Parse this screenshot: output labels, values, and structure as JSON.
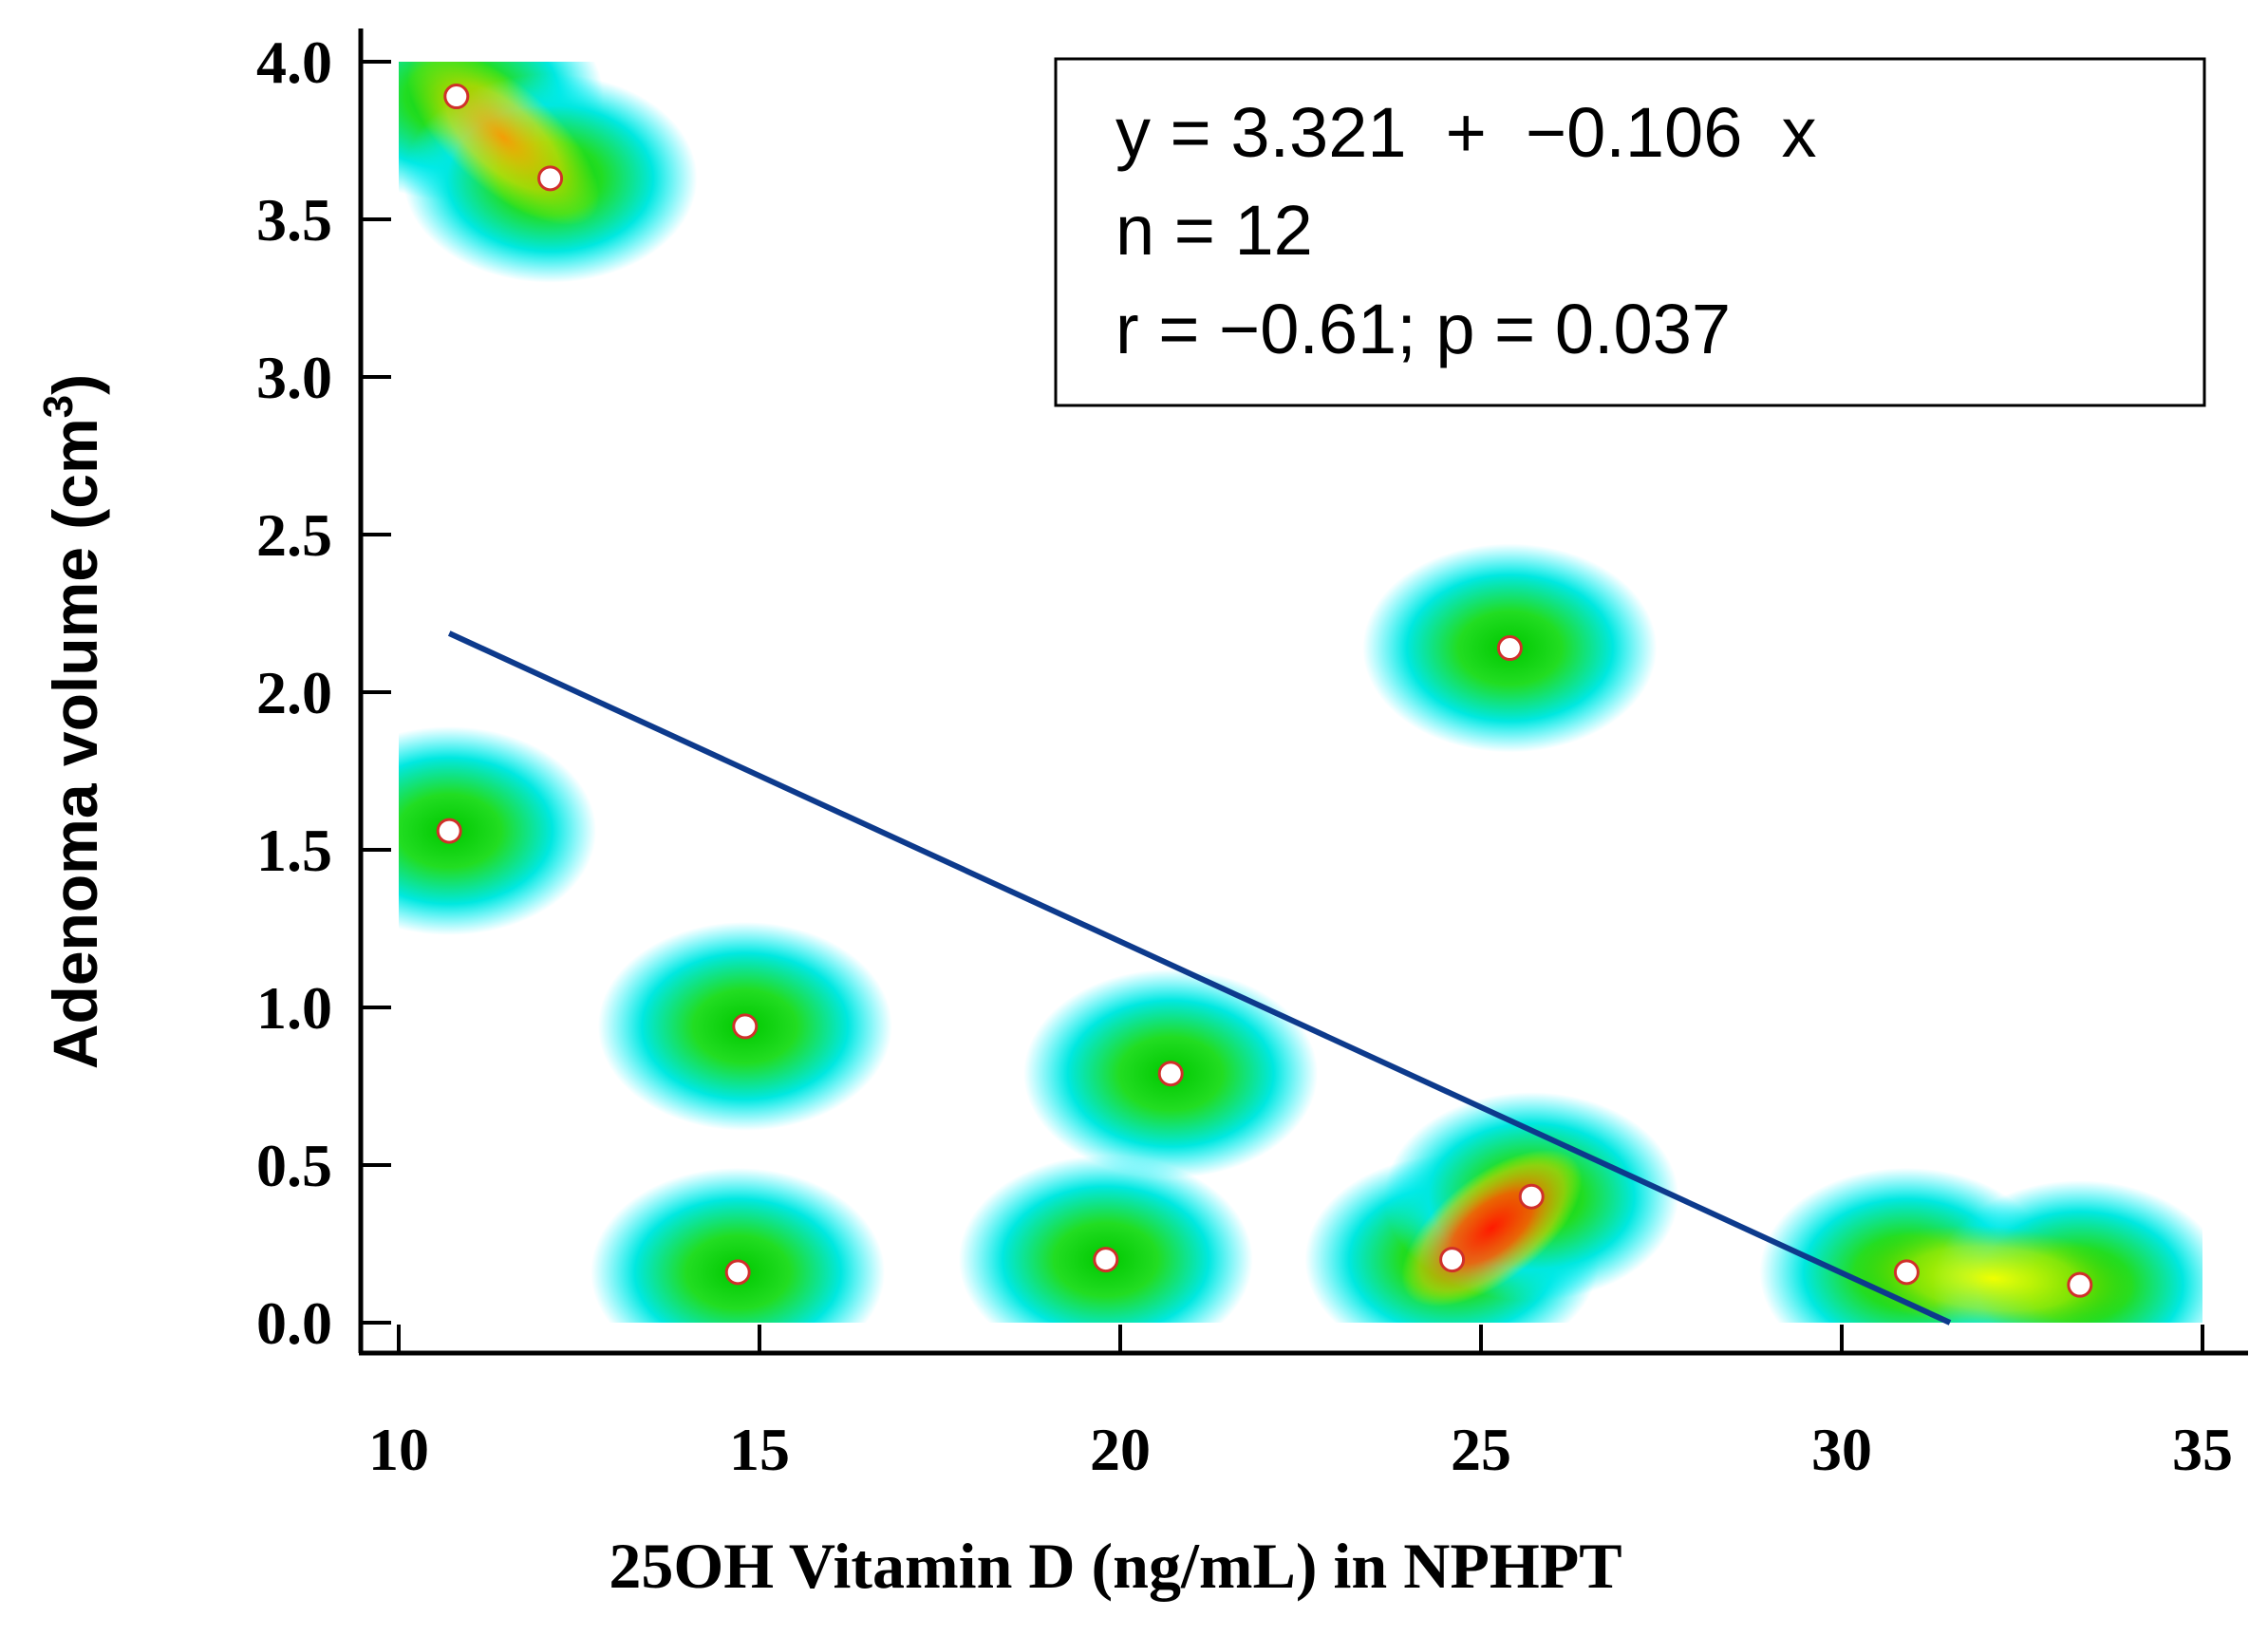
{
  "chart_data": {
    "type": "scatter",
    "style": "density-heatmap scatter with linear regression line",
    "xlabel": "25OH Vitamin D (ng/mL) in NPHPT",
    "ylabel": "Adenoma volume (cm",
    "ylabel_sup": "3",
    "ylabel_close": ")",
    "xlim": [
      10,
      35
    ],
    "ylim": [
      0.0,
      4.0
    ],
    "x_ticks": [
      10,
      15,
      20,
      25,
      30,
      35
    ],
    "x_tick_labels": [
      "10",
      "15",
      "20",
      "25",
      "30",
      "35"
    ],
    "y_ticks": [
      0.0,
      0.5,
      1.0,
      1.5,
      2.0,
      2.5,
      3.0,
      3.5,
      4.0
    ],
    "y_tick_labels": [
      "0.0",
      "0.5",
      "1.0",
      "1.5",
      "2.0",
      "2.5",
      "3.0",
      "3.5",
      "4.0"
    ],
    "points": [
      {
        "x": 10.8,
        "y": 3.89
      },
      {
        "x": 12.1,
        "y": 3.63
      },
      {
        "x": 10.7,
        "y": 1.56
      },
      {
        "x": 14.8,
        "y": 0.94
      },
      {
        "x": 14.7,
        "y": 0.16
      },
      {
        "x": 19.8,
        "y": 0.2
      },
      {
        "x": 20.7,
        "y": 0.79
      },
      {
        "x": 24.6,
        "y": 0.2
      },
      {
        "x": 25.7,
        "y": 0.4
      },
      {
        "x": 25.4,
        "y": 2.14
      },
      {
        "x": 30.9,
        "y": 0.16
      },
      {
        "x": 33.3,
        "y": 0.12
      }
    ],
    "regression": {
      "intercept": 3.321,
      "slope": -0.106,
      "x_range": [
        10.7,
        31.5
      ],
      "color": "#0d3a8c"
    },
    "legend": {
      "position": "top-right",
      "lines": [
        "y = 3.321  +  −0.106  x",
        "n = 12",
        "r = −0.61; p = 0.037"
      ]
    },
    "colors": {
      "point_fill": "#ffffff",
      "point_stroke": "#d0302a",
      "density_low": "#00e5ee",
      "density_mid": "#00cc00",
      "density_high": "#ff1a00"
    }
  }
}
